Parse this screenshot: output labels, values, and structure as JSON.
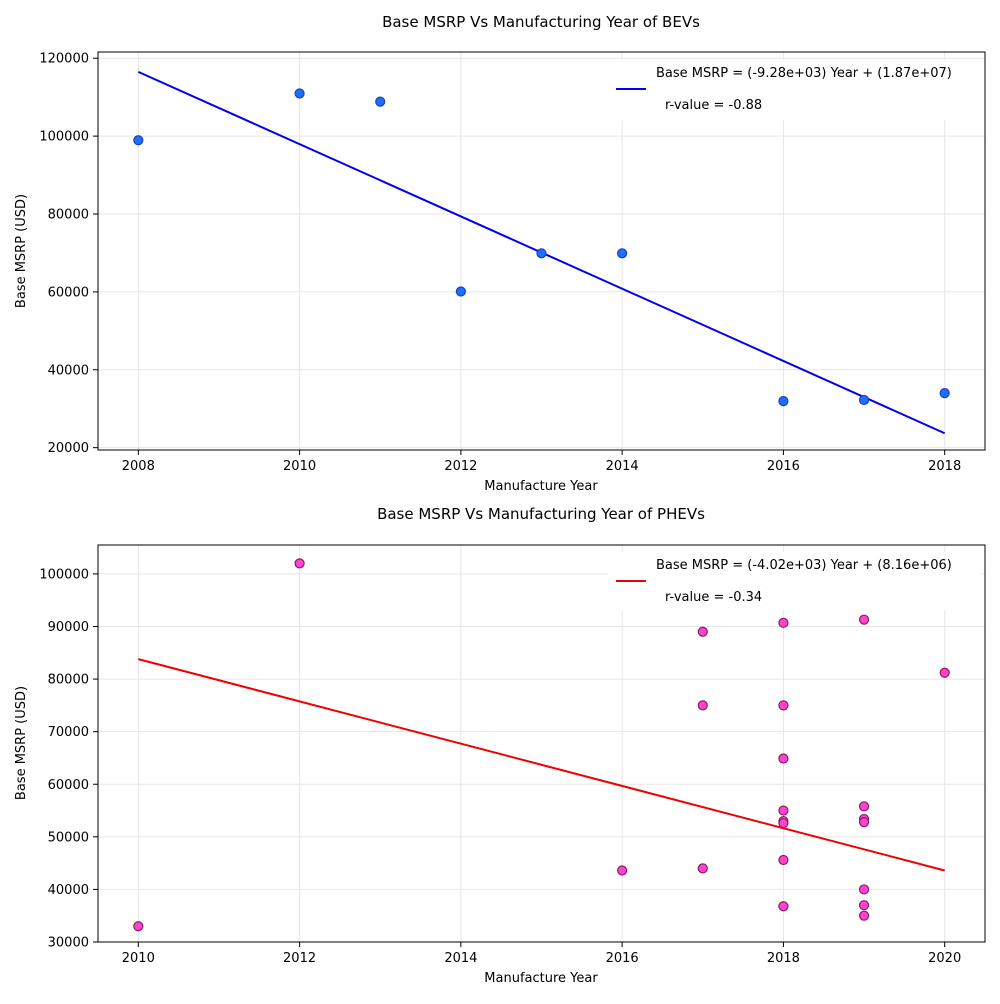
{
  "chart_data": [
    {
      "type": "scatter",
      "title": "Base MSRP Vs Manufacturing Year of BEVs",
      "xlabel": "Manufacture Year",
      "ylabel": "Base MSRP (USD)",
      "xlim": [
        2007.5,
        2018.5
      ],
      "ylim": [
        19400,
        121600
      ],
      "xticks": [
        2008,
        2010,
        2012,
        2014,
        2016,
        2018
      ],
      "yticks": [
        20000,
        40000,
        60000,
        80000,
        100000,
        120000
      ],
      "grid": true,
      "legend_position": "top-right",
      "point_color": "#1f6fff",
      "point_edge_color": "#1a3fbf",
      "fit_color": "#0000ee",
      "points": [
        {
          "x": 2008,
          "y": 98950
        },
        {
          "x": 2010,
          "y": 110950
        },
        {
          "x": 2011,
          "y": 108850
        },
        {
          "x": 2012,
          "y": 60100
        },
        {
          "x": 2013,
          "y": 69900
        },
        {
          "x": 2014,
          "y": 69900
        },
        {
          "x": 2016,
          "y": 31950
        },
        {
          "x": 2017,
          "y": 32250
        },
        {
          "x": 2018,
          "y": 34000
        }
      ],
      "fit": {
        "x": [
          2008,
          2018
        ],
        "y": [
          116500,
          23700
        ],
        "label": "Base MSRP = (-9.28e+03) Year + (1.87e+07)",
        "r_label": "r-value = -0.88"
      }
    },
    {
      "type": "scatter",
      "title": "Base MSRP Vs Manufacturing Year of PHEVs",
      "xlabel": "Manufacture Year",
      "ylabel": "Base MSRP (USD)",
      "xlim": [
        2009.5,
        2020.5
      ],
      "ylim": [
        30000,
        105500
      ],
      "xticks": [
        2010,
        2012,
        2014,
        2016,
        2018,
        2020
      ],
      "yticks": [
        30000,
        40000,
        50000,
        60000,
        70000,
        80000,
        90000,
        100000
      ],
      "grid": true,
      "legend_position": "top-right",
      "point_color": "#ff44cc",
      "point_edge_color": "#8a1a6a",
      "fit_color": "#ee0000",
      "points": [
        {
          "x": 2010,
          "y": 33000
        },
        {
          "x": 2012,
          "y": 102000
        },
        {
          "x": 2016,
          "y": 43600
        },
        {
          "x": 2017,
          "y": 89000
        },
        {
          "x": 2017,
          "y": 75000
        },
        {
          "x": 2017,
          "y": 44000
        },
        {
          "x": 2018,
          "y": 90700
        },
        {
          "x": 2018,
          "y": 75000
        },
        {
          "x": 2018,
          "y": 64900
        },
        {
          "x": 2018,
          "y": 55000
        },
        {
          "x": 2018,
          "y": 53000
        },
        {
          "x": 2018,
          "y": 52600
        },
        {
          "x": 2018,
          "y": 45600
        },
        {
          "x": 2018,
          "y": 36800
        },
        {
          "x": 2019,
          "y": 91300
        },
        {
          "x": 2019,
          "y": 55800
        },
        {
          "x": 2019,
          "y": 53400
        },
        {
          "x": 2019,
          "y": 52800
        },
        {
          "x": 2019,
          "y": 40000
        },
        {
          "x": 2019,
          "y": 37000
        },
        {
          "x": 2019,
          "y": 35000
        },
        {
          "x": 2020,
          "y": 81200
        }
      ],
      "fit": {
        "x": [
          2010,
          2020
        ],
        "y": [
          83800,
          43600
        ],
        "label": "Base MSRP = (-4.02e+03) Year + (8.16e+06)",
        "r_label": "r-value = -0.34"
      }
    }
  ]
}
